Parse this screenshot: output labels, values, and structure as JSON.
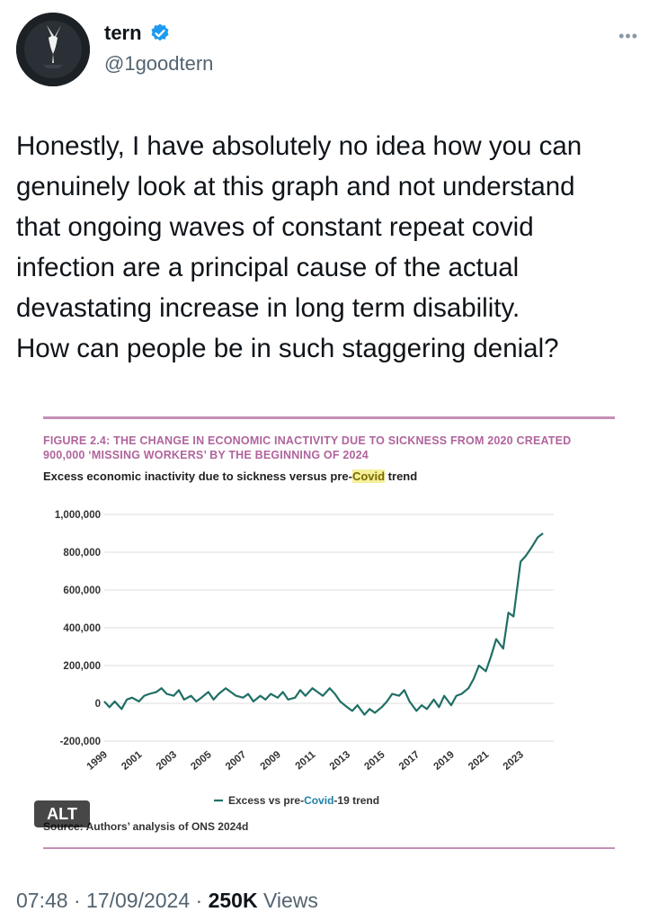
{
  "author": {
    "name": "tern",
    "handle": "@1goodtern",
    "verified": true,
    "avatar_icon": "tern-bird-avatar"
  },
  "more_icon": "more-options-icon",
  "tweet": {
    "text": "Honestly, I have absolutely no idea how you can\ngenuinely look at this graph and not understand\nthat ongoing waves of constant repeat covid\ninfection are a principal cause of the actual\ndevastating increase in long term disability.\nHow can people be in such staggering denial?"
  },
  "figure": {
    "title_line1": "FIGURE 2.4: THE CHANGE IN ECONOMIC INACTIVITY DUE TO SICKNESS FROM 2020 CREATED",
    "title_line2": "900,000 ‘MISSING WORKERS’ BY THE BEGINNING OF 2024",
    "subtitle_pre": "Excess economic inactivity due to sickness versus pre-",
    "subtitle_hl": "Covid",
    "subtitle_post": " trend",
    "source_label": "Source:",
    "source_text": " Authors’ analysis of ONS 2024d",
    "accent_color": "#c58fb7",
    "title_color": "#b0649c"
  },
  "alt_badge": "ALT",
  "meta": {
    "time": "07:48",
    "date": "17/09/2024",
    "views_count": "250K",
    "views_label": "Views"
  },
  "chart_data": {
    "type": "line",
    "title": "Excess economic inactivity due to sickness versus pre-Covid trend",
    "ylim": [
      -200000,
      1000000
    ],
    "y_ticks": [
      1000000,
      800000,
      600000,
      400000,
      200000,
      0,
      -200000
    ],
    "y_tick_labels": [
      "1,000,000",
      "800,000",
      "600,000",
      "400,000",
      "200,000",
      "0",
      "-200,000"
    ],
    "x_ticks": [
      1999,
      2001,
      2003,
      2005,
      2007,
      2009,
      2011,
      2013,
      2015,
      2017,
      2019,
      2021,
      2023
    ],
    "xlim": [
      1999,
      2024.5
    ],
    "grid": true,
    "line_color": "#1f6f66",
    "legend_pre": "Excess vs pre-",
    "legend_hl": "Covid",
    "legend_post": "-19 trend",
    "series": [
      {
        "name": "Excess vs pre-Covid-19 trend",
        "x": [
          1999.0,
          1999.3,
          1999.6,
          2000.0,
          2000.3,
          2000.6,
          2001.0,
          2001.3,
          2001.6,
          2002.0,
          2002.3,
          2002.6,
          2003.0,
          2003.3,
          2003.6,
          2004.0,
          2004.3,
          2004.6,
          2005.0,
          2005.3,
          2005.6,
          2006.0,
          2006.3,
          2006.6,
          2007.0,
          2007.3,
          2007.6,
          2008.0,
          2008.3,
          2008.6,
          2009.0,
          2009.3,
          2009.6,
          2010.0,
          2010.3,
          2010.6,
          2011.0,
          2011.3,
          2011.6,
          2012.0,
          2012.3,
          2012.6,
          2013.0,
          2013.3,
          2013.6,
          2014.0,
          2014.3,
          2014.6,
          2015.0,
          2015.3,
          2015.6,
          2016.0,
          2016.3,
          2016.6,
          2017.0,
          2017.3,
          2017.6,
          2018.0,
          2018.3,
          2018.6,
          2019.0,
          2019.3,
          2019.6,
          2020.0,
          2020.3,
          2020.6,
          2021.0,
          2021.3,
          2021.6,
          2022.0,
          2022.3,
          2022.6,
          2023.0,
          2023.3,
          2023.6,
          2024.0,
          2024.3
        ],
        "y": [
          10000,
          -20000,
          10000,
          -30000,
          20000,
          30000,
          10000,
          40000,
          50000,
          60000,
          80000,
          50000,
          40000,
          70000,
          20000,
          40000,
          10000,
          30000,
          60000,
          20000,
          50000,
          80000,
          60000,
          40000,
          30000,
          50000,
          10000,
          40000,
          20000,
          50000,
          30000,
          60000,
          20000,
          30000,
          70000,
          40000,
          80000,
          60000,
          40000,
          80000,
          50000,
          10000,
          -20000,
          -40000,
          -10000,
          -60000,
          -30000,
          -50000,
          -20000,
          10000,
          50000,
          40000,
          70000,
          10000,
          -40000,
          -10000,
          -30000,
          20000,
          -20000,
          40000,
          -10000,
          40000,
          50000,
          80000,
          130000,
          200000,
          170000,
          250000,
          340000,
          290000,
          480000,
          460000,
          750000,
          780000,
          820000,
          880000,
          900000
        ]
      }
    ]
  }
}
